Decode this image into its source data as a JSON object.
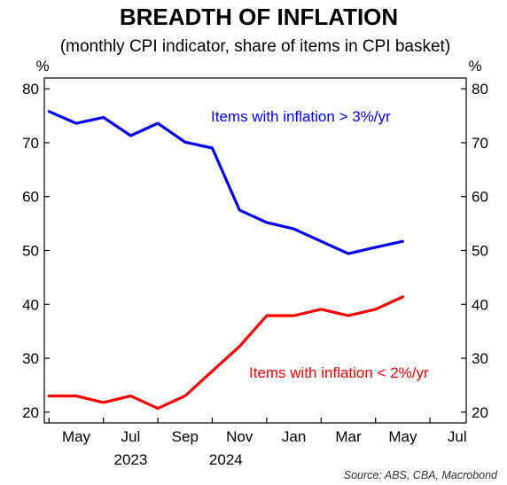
{
  "chart_data": {
    "type": "line",
    "title": "BREADTH OF INFLATION",
    "subtitle": "(monthly CPI indicator, share of items in CPI basket)",
    "ylabel_left": "%",
    "ylabel_right": "%",
    "ylim": [
      18,
      82
    ],
    "yticks": [
      20,
      30,
      40,
      50,
      60,
      70,
      80
    ],
    "x_months": [
      "May",
      "Jul",
      "Sep",
      "Nov",
      "Jan",
      "Mar",
      "May",
      "Jul"
    ],
    "x_years": [
      "2023",
      "2024"
    ],
    "x_categories": [
      "Apr 2023",
      "May 2023",
      "Jun 2023",
      "Jul 2023",
      "Aug 2023",
      "Sep 2023",
      "Oct 2023",
      "Nov 2023",
      "Dec 2023",
      "Jan 2024",
      "Feb 2024",
      "Mar 2024",
      "Apr 2024",
      "May 2024"
    ],
    "series": [
      {
        "name": "Items with inflation > 3%/yr",
        "color": "#0000ff",
        "values": [
          75.8,
          73.6,
          74.7,
          71.3,
          73.6,
          70.1,
          69.0,
          57.5,
          55.2,
          54.0,
          51.7,
          49.4,
          50.6,
          51.7
        ]
      },
      {
        "name": "Items with inflation < 2%/yr",
        "color": "#ff0000",
        "values": [
          23.0,
          23.0,
          21.8,
          23.0,
          20.7,
          23.0,
          27.6,
          32.2,
          37.9,
          37.9,
          39.1,
          37.9,
          39.1,
          41.4
        ]
      }
    ],
    "source": "Source: ABS, CBA, Macrobond",
    "grid": false,
    "legend": "none"
  }
}
